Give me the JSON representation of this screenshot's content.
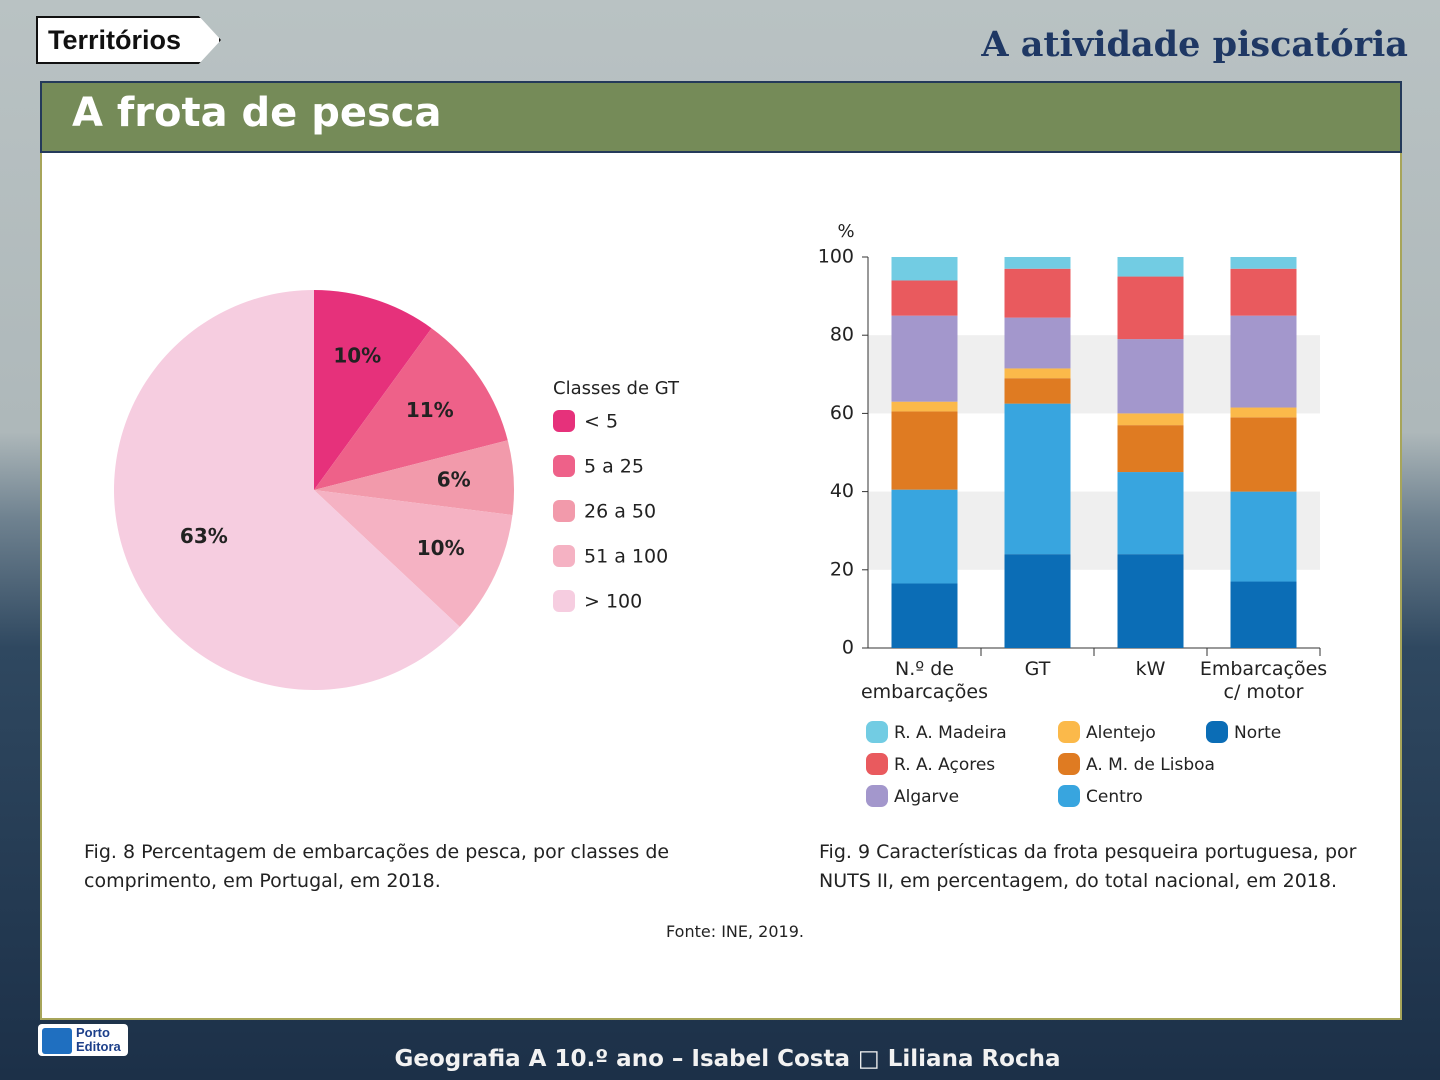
{
  "logo": "Territórios",
  "header_title": "A atividade piscatória",
  "section_title": "A frota de pesca",
  "chart_data": [
    {
      "type": "pie",
      "legend_title": "Classes de GT",
      "categories": [
        "< 5",
        "5 a 25",
        "26 a 50",
        "51 a 100",
        "> 100"
      ],
      "values": [
        10,
        11,
        6,
        10,
        63
      ],
      "value_labels": [
        "10%",
        "11%",
        "6%",
        "10%",
        "63%"
      ],
      "colors": [
        "#e6317b",
        "#ee6189",
        "#f29aab",
        "#f5b2c3",
        "#f6cde0"
      ]
    },
    {
      "type": "bar",
      "stacked": true,
      "y_label": "%",
      "categories": [
        "N.º de embarcações",
        "GT",
        "kW",
        "Embarcações c/ motor"
      ],
      "ylim": [
        0,
        100
      ],
      "yticks": [
        0,
        20,
        40,
        60,
        80,
        100
      ],
      "banded_grid": true,
      "series": [
        {
          "name": "Norte",
          "color": "#0b6db6",
          "values": [
            16.5,
            24,
            24,
            17
          ]
        },
        {
          "name": "Centro",
          "color": "#38a5df",
          "values": [
            24,
            38.5,
            21,
            23
          ]
        },
        {
          "name": "A. M. de Lisboa",
          "color": "#df7b22",
          "values": [
            20,
            6.5,
            12,
            19
          ]
        },
        {
          "name": "Alentejo",
          "color": "#fbb94a",
          "values": [
            2.5,
            2.5,
            3,
            2.5
          ]
        },
        {
          "name": "Algarve",
          "color": "#a397cc",
          "values": [
            22,
            13,
            19,
            23.5
          ]
        },
        {
          "name": "R. A. Açores",
          "color": "#e95a5e",
          "values": [
            9,
            12.5,
            16,
            12
          ]
        },
        {
          "name": "R. A. Madeira",
          "color": "#72cce3",
          "values": [
            6,
            3,
            5,
            3
          ]
        }
      ]
    }
  ],
  "caption_left": "Fig. 8 Percentagem de embarcações de pesca, por classes  de comprimento, em Portugal, em 2018.",
  "caption_right": "Fig. 9 Características da frota pesqueira portuguesa, por NUTS II, em percentagem, do total nacional, em 2018.",
  "source": "Fonte: INE, 2019.",
  "publisher": "Porto Editora",
  "footer": "Geografia A 10.º ano – Isabel Costa □ Liliana Rocha"
}
